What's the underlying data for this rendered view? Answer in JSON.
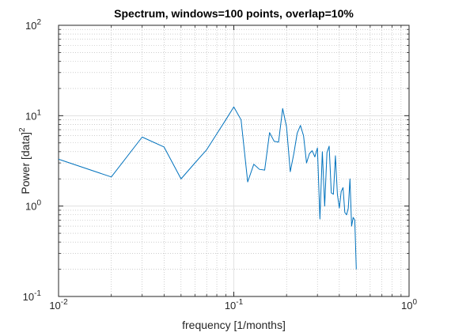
{
  "chart_data": {
    "type": "line",
    "title": "Spectrum, windows=100 points, overlap=10%",
    "xlabel": "frequency [1/months]",
    "ylabel": {
      "text": "Power [data]",
      "superscript": "2"
    },
    "x_scale": "log",
    "y_scale": "log",
    "xlim": [
      0.01,
      1
    ],
    "ylim": [
      0.1,
      100
    ],
    "x_ticks": [
      {
        "base": "10",
        "exp": "-2",
        "value": 0.01
      },
      {
        "base": "10",
        "exp": "-1",
        "value": 0.1
      },
      {
        "base": "10",
        "exp": "0",
        "value": 1
      }
    ],
    "y_ticks": [
      {
        "base": "10",
        "exp": "-1",
        "value": 0.1
      },
      {
        "base": "10",
        "exp": "0",
        "value": 1
      },
      {
        "base": "10",
        "exp": "1",
        "value": 10
      },
      {
        "base": "10",
        "exp": "2",
        "value": 100
      }
    ],
    "grid": true,
    "minor_grid": true,
    "line_color": "#0072BD",
    "series": [
      {
        "x": [
          0.01,
          0.02,
          0.03,
          0.04,
          0.05,
          0.06,
          0.07,
          0.08,
          0.09,
          0.1,
          0.11,
          0.12,
          0.13,
          0.14,
          0.15,
          0.16,
          0.17,
          0.18,
          0.19,
          0.2,
          0.21,
          0.22,
          0.23,
          0.24,
          0.25,
          0.26,
          0.27,
          0.28,
          0.29,
          0.3,
          0.31,
          0.32,
          0.33,
          0.34,
          0.35,
          0.36,
          0.37,
          0.38,
          0.39,
          0.4,
          0.41,
          0.42,
          0.43,
          0.44,
          0.45,
          0.46,
          0.47,
          0.48,
          0.49,
          0.5
        ],
        "y": [
          3.3,
          2.1,
          5.8,
          4.5,
          2.0,
          3.0,
          4.2,
          6.3,
          9.0,
          12.5,
          9.0,
          1.85,
          2.9,
          2.55,
          2.5,
          6.5,
          5.2,
          5.1,
          12.0,
          7.5,
          2.4,
          3.8,
          6.4,
          7.8,
          6.0,
          3.0,
          3.8,
          4.1,
          3.5,
          4.4,
          0.72,
          4.0,
          1.0,
          3.9,
          4.6,
          1.4,
          1.35,
          3.6,
          1.35,
          0.95,
          1.45,
          1.6,
          0.85,
          0.8,
          0.95,
          2.0,
          0.6,
          0.75,
          0.7,
          0.2
        ]
      }
    ]
  }
}
